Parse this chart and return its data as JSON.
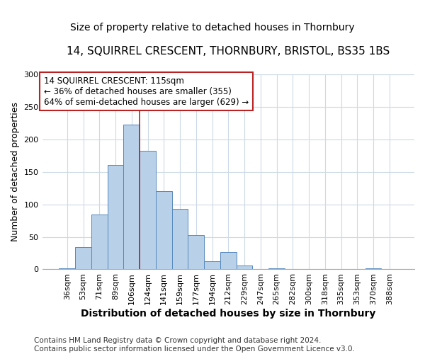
{
  "title": "14, SQUIRREL CRESCENT, THORNBURY, BRISTOL, BS35 1BS",
  "subtitle": "Size of property relative to detached houses in Thornbury",
  "xlabel": "Distribution of detached houses by size in Thornbury",
  "ylabel": "Number of detached properties",
  "bar_labels": [
    "36sqm",
    "53sqm",
    "71sqm",
    "89sqm",
    "106sqm",
    "124sqm",
    "141sqm",
    "159sqm",
    "177sqm",
    "194sqm",
    "212sqm",
    "229sqm",
    "247sqm",
    "265sqm",
    "282sqm",
    "300sqm",
    "318sqm",
    "335sqm",
    "353sqm",
    "370sqm",
    "388sqm"
  ],
  "bar_values": [
    2,
    34,
    84,
    160,
    222,
    182,
    120,
    93,
    53,
    13,
    27,
    6,
    0,
    2,
    0,
    1,
    0,
    0,
    0,
    2,
    0
  ],
  "bar_color": "#b8d0e8",
  "bar_edgecolor": "#5588bb",
  "vline_x_index": 5,
  "vline_color": "#bb2222",
  "annotation_text": "14 SQUIRREL CRESCENT: 115sqm\n← 36% of detached houses are smaller (355)\n64% of semi-detached houses are larger (629) →",
  "annotation_box_facecolor": "#ffffff",
  "annotation_box_edgecolor": "#bb2222",
  "footer_text": "Contains HM Land Registry data © Crown copyright and database right 2024.\nContains public sector information licensed under the Open Government Licence v3.0.",
  "ylim": [
    0,
    300
  ],
  "background_color": "#ffffff",
  "plot_background_color": "#ffffff",
  "grid_color": "#ccd9e8",
  "title_fontsize": 11,
  "subtitle_fontsize": 10,
  "ylabel_fontsize": 9,
  "xlabel_fontsize": 10,
  "footer_fontsize": 7.5,
  "tick_fontsize": 8
}
